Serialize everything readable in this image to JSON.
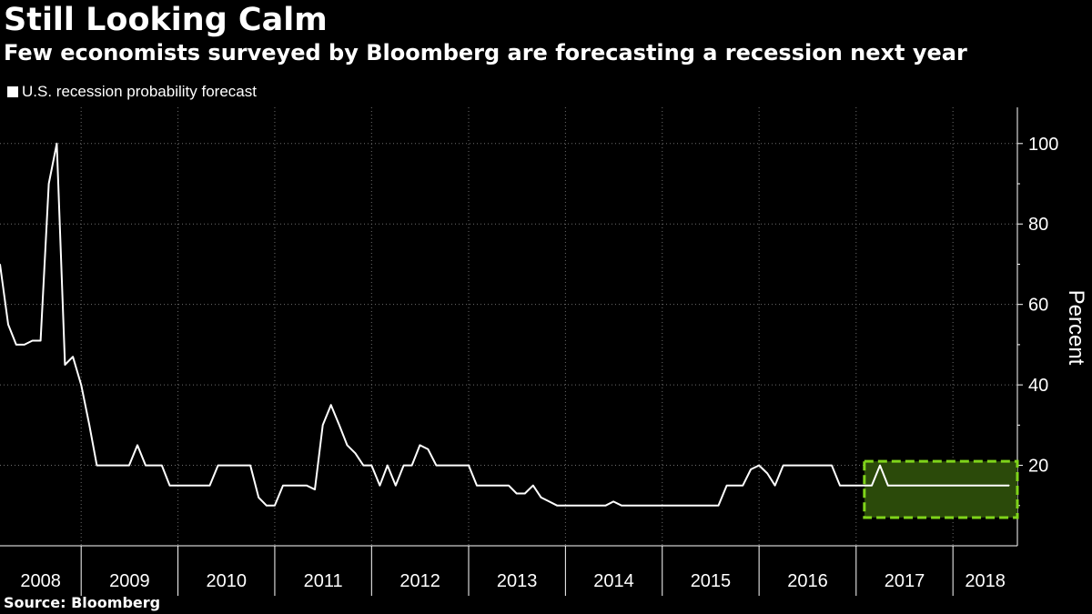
{
  "header": {
    "title": "Still Looking Calm",
    "subtitle": "Few economists surveyed by Bloomberg are forecasting a recession next year"
  },
  "legend": {
    "label": "U.S. recession probability forecast"
  },
  "footer": {
    "source": "Source: Bloomberg"
  },
  "chart_data": {
    "type": "line",
    "title": "Still Looking Calm",
    "subtitle": "Few economists surveyed by Bloomberg are forecasting a recession next year",
    "ylabel": "Percent",
    "xlabel": "",
    "ylim": [
      0,
      109
    ],
    "xlim": [
      "2008-03-01",
      "2018-09-01"
    ],
    "yticks": [
      20,
      40,
      60,
      80,
      100
    ],
    "xtick_labels": [
      "2008",
      "2009",
      "2010",
      "2011",
      "2012",
      "2013",
      "2014",
      "2015",
      "2016",
      "2017",
      "2018"
    ],
    "grid": true,
    "background": "#000000",
    "line_color": "#ffffff",
    "highlight": {
      "fill": "#2b4a0a",
      "border": "#7fd41a",
      "from": "2017-02-01",
      "to": "2018-09-01",
      "ylim": [
        7,
        21
      ]
    },
    "series": [
      {
        "name": "U.S. recession probability forecast",
        "points": [
          [
            "2008-03-01",
            70
          ],
          [
            "2008-04-01",
            55
          ],
          [
            "2008-05-01",
            50
          ],
          [
            "2008-06-01",
            50
          ],
          [
            "2008-07-01",
            51
          ],
          [
            "2008-08-01",
            51
          ],
          [
            "2008-09-01",
            90
          ],
          [
            "2008-10-01",
            100
          ],
          [
            "2008-11-01",
            45
          ],
          [
            "2008-12-01",
            47
          ],
          [
            "2009-01-01",
            40
          ],
          [
            "2009-02-01",
            30
          ],
          [
            "2009-03-01",
            20
          ],
          [
            "2009-04-01",
            20
          ],
          [
            "2009-05-01",
            20
          ],
          [
            "2009-06-01",
            20
          ],
          [
            "2009-07-01",
            20
          ],
          [
            "2009-08-01",
            25
          ],
          [
            "2009-09-01",
            20
          ],
          [
            "2009-10-01",
            20
          ],
          [
            "2009-11-01",
            20
          ],
          [
            "2009-12-01",
            15
          ],
          [
            "2010-01-01",
            15
          ],
          [
            "2010-02-01",
            15
          ],
          [
            "2010-03-01",
            15
          ],
          [
            "2010-04-01",
            15
          ],
          [
            "2010-05-01",
            15
          ],
          [
            "2010-06-01",
            20
          ],
          [
            "2010-07-01",
            20
          ],
          [
            "2010-08-01",
            20
          ],
          [
            "2010-09-01",
            20
          ],
          [
            "2010-10-01",
            20
          ],
          [
            "2010-11-01",
            12
          ],
          [
            "2010-12-01",
            10
          ],
          [
            "2011-01-01",
            10
          ],
          [
            "2011-02-01",
            15
          ],
          [
            "2011-03-01",
            15
          ],
          [
            "2011-04-01",
            15
          ],
          [
            "2011-05-01",
            15
          ],
          [
            "2011-06-01",
            14
          ],
          [
            "2011-07-01",
            30
          ],
          [
            "2011-08-01",
            35
          ],
          [
            "2011-09-01",
            30
          ],
          [
            "2011-10-01",
            25
          ],
          [
            "2011-11-01",
            23
          ],
          [
            "2011-12-01",
            20
          ],
          [
            "2012-01-01",
            20
          ],
          [
            "2012-02-01",
            15
          ],
          [
            "2012-03-01",
            20
          ],
          [
            "2012-04-01",
            15
          ],
          [
            "2012-05-01",
            20
          ],
          [
            "2012-06-01",
            20
          ],
          [
            "2012-07-01",
            25
          ],
          [
            "2012-08-01",
            24
          ],
          [
            "2012-09-01",
            20
          ],
          [
            "2012-10-01",
            20
          ],
          [
            "2012-11-01",
            20
          ],
          [
            "2012-12-01",
            20
          ],
          [
            "2013-01-01",
            20
          ],
          [
            "2013-02-01",
            15
          ],
          [
            "2013-03-01",
            15
          ],
          [
            "2013-04-01",
            15
          ],
          [
            "2013-05-01",
            15
          ],
          [
            "2013-06-01",
            15
          ],
          [
            "2013-07-01",
            13
          ],
          [
            "2013-08-01",
            13
          ],
          [
            "2013-09-01",
            15
          ],
          [
            "2013-10-01",
            12
          ],
          [
            "2013-11-01",
            11
          ],
          [
            "2013-12-01",
            10
          ],
          [
            "2014-01-01",
            10
          ],
          [
            "2014-02-01",
            10
          ],
          [
            "2014-03-01",
            10
          ],
          [
            "2014-04-01",
            10
          ],
          [
            "2014-05-01",
            10
          ],
          [
            "2014-06-01",
            10
          ],
          [
            "2014-07-01",
            11
          ],
          [
            "2014-08-01",
            10
          ],
          [
            "2014-09-01",
            10
          ],
          [
            "2014-10-01",
            10
          ],
          [
            "2014-11-01",
            10
          ],
          [
            "2014-12-01",
            10
          ],
          [
            "2015-01-01",
            10
          ],
          [
            "2015-02-01",
            10
          ],
          [
            "2015-03-01",
            10
          ],
          [
            "2015-04-01",
            10
          ],
          [
            "2015-05-01",
            10
          ],
          [
            "2015-06-01",
            10
          ],
          [
            "2015-07-01",
            10
          ],
          [
            "2015-08-01",
            10
          ],
          [
            "2015-09-01",
            15
          ],
          [
            "2015-10-01",
            15
          ],
          [
            "2015-11-01",
            15
          ],
          [
            "2015-12-01",
            19
          ],
          [
            "2016-01-01",
            20
          ],
          [
            "2016-02-01",
            18
          ],
          [
            "2016-03-01",
            15
          ],
          [
            "2016-04-01",
            20
          ],
          [
            "2016-05-01",
            20
          ],
          [
            "2016-06-01",
            20
          ],
          [
            "2016-07-01",
            20
          ],
          [
            "2016-08-01",
            20
          ],
          [
            "2016-09-01",
            20
          ],
          [
            "2016-10-01",
            20
          ],
          [
            "2016-11-01",
            15
          ],
          [
            "2016-12-01",
            15
          ],
          [
            "2017-01-01",
            15
          ],
          [
            "2017-02-01",
            15
          ],
          [
            "2017-03-01",
            15
          ],
          [
            "2017-04-01",
            20
          ],
          [
            "2017-05-01",
            15
          ],
          [
            "2017-06-01",
            15
          ],
          [
            "2017-07-01",
            15
          ],
          [
            "2017-08-01",
            15
          ],
          [
            "2017-09-01",
            15
          ],
          [
            "2017-10-01",
            15
          ],
          [
            "2017-11-01",
            15
          ],
          [
            "2017-12-01",
            15
          ],
          [
            "2018-01-01",
            15
          ],
          [
            "2018-02-01",
            15
          ],
          [
            "2018-03-01",
            15
          ],
          [
            "2018-04-01",
            15
          ],
          [
            "2018-05-01",
            15
          ],
          [
            "2018-06-01",
            15
          ],
          [
            "2018-07-01",
            15
          ],
          [
            "2018-08-01",
            15
          ]
        ]
      }
    ]
  }
}
